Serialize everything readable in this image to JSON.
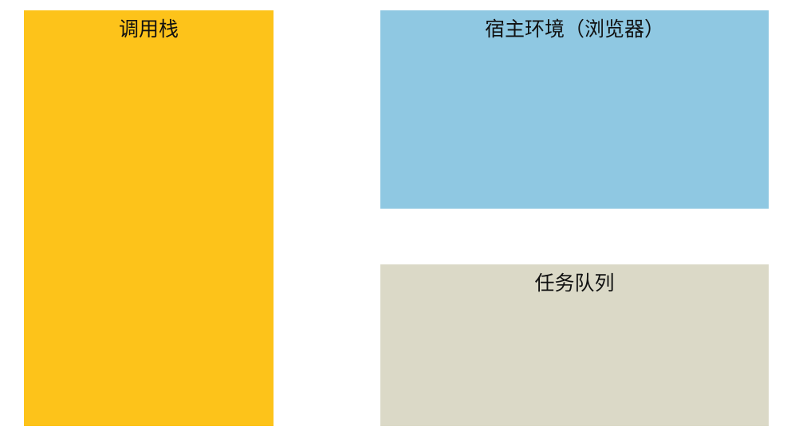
{
  "panels": {
    "call_stack": {
      "label": "调用栈",
      "color": "#fdc31a"
    },
    "host_environment": {
      "label": "宿主环境（浏览器）",
      "color": "#8fc8e2"
    },
    "task_queue": {
      "label": "任务队列",
      "color": "#dbd9c7"
    }
  }
}
